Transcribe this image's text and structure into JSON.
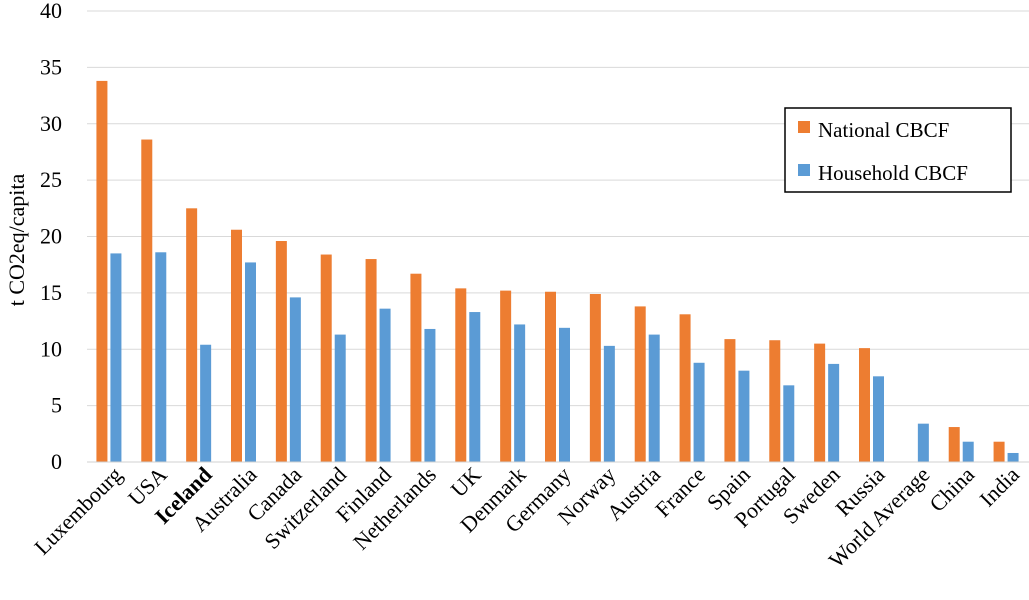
{
  "chart_data": {
    "type": "bar",
    "title": "",
    "xlabel": "",
    "ylabel": "t CO2eq/capita",
    "ylim": [
      0,
      40
    ],
    "yticks": [
      "0",
      "5",
      "10",
      "15",
      "20",
      "25",
      "30",
      "35",
      "40"
    ],
    "grid": true,
    "legend_position": "top-right",
    "bold_category": "Iceland",
    "categories": [
      "Luxembourg",
      "USA",
      "Iceland",
      "Australia",
      "Canada",
      "Switzerland",
      "Finland",
      "Netherlands",
      "UK",
      "Denmark",
      "Germany",
      "Norway",
      "Austria",
      "France",
      "Spain",
      "Portugal",
      "Sweden",
      "Russia",
      "World Average",
      "China",
      "India"
    ],
    "series": [
      {
        "name": "National CBCF",
        "color": "#ED7D31",
        "values": [
          33.8,
          28.6,
          22.5,
          20.6,
          19.6,
          18.4,
          18.0,
          16.7,
          15.4,
          15.2,
          15.1,
          14.9,
          13.8,
          13.1,
          10.9,
          10.8,
          10.5,
          10.1,
          null,
          3.1,
          1.8
        ]
      },
      {
        "name": "Household CBCF",
        "color": "#5B9BD5",
        "values": [
          18.5,
          18.6,
          10.4,
          17.7,
          14.6,
          11.3,
          13.6,
          11.8,
          13.3,
          12.2,
          11.9,
          10.3,
          11.3,
          8.8,
          8.1,
          6.8,
          8.7,
          7.6,
          3.4,
          1.8,
          0.8
        ]
      }
    ]
  }
}
